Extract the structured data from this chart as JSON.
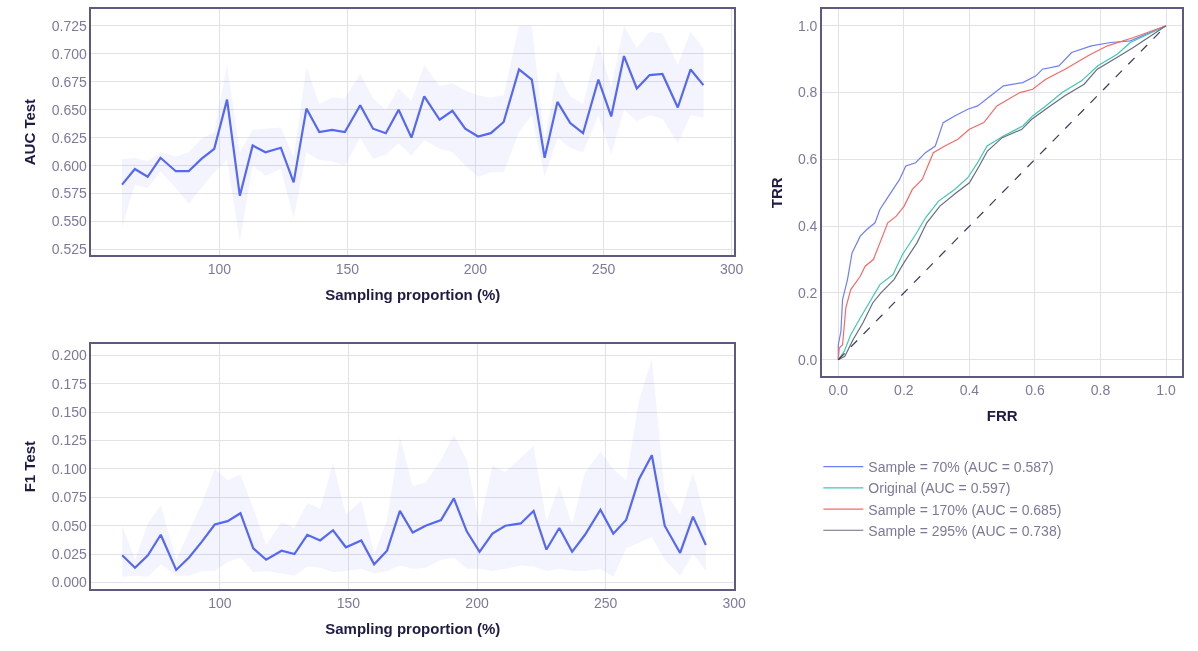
{
  "chart_data": [
    {
      "type": "line",
      "xlabel": "Sampling proportion (%)",
      "ylabel": "AUC Test",
      "grid": true,
      "legend": false,
      "x": [
        62,
        67,
        72,
        77,
        83,
        88,
        93,
        98,
        103,
        108,
        113,
        118,
        124,
        129,
        134,
        139,
        144,
        149,
        155,
        160,
        165,
        170,
        175,
        180,
        186,
        191,
        196,
        201,
        206,
        211,
        217,
        222,
        227,
        232,
        237,
        242,
        248,
        253,
        258,
        263,
        268,
        273,
        279,
        284,
        289
      ],
      "series": [
        {
          "color": "#5468f5",
          "values": [
            0.583,
            0.597,
            0.59,
            0.607,
            0.595,
            0.595,
            0.606,
            0.615,
            0.659,
            0.573,
            0.618,
            0.612,
            0.616,
            0.585,
            0.651,
            0.63,
            0.632,
            0.63,
            0.654,
            0.633,
            0.629,
            0.65,
            0.625,
            0.662,
            0.641,
            0.649,
            0.633,
            0.626,
            0.629,
            0.639,
            0.686,
            0.677,
            0.607,
            0.657,
            0.638,
            0.629,
            0.677,
            0.644,
            0.698,
            0.669,
            0.681,
            0.682,
            0.652,
            0.686,
            0.672
          ],
          "lower": [
            0.545,
            0.583,
            0.58,
            0.595,
            0.58,
            0.566,
            0.58,
            0.594,
            0.605,
            0.532,
            0.6,
            0.591,
            0.597,
            0.553,
            0.612,
            0.605,
            0.604,
            0.6,
            0.625,
            0.606,
            0.61,
            0.62,
            0.609,
            0.623,
            0.615,
            0.612,
            0.6,
            0.59,
            0.594,
            0.594,
            0.63,
            0.645,
            0.59,
            0.625,
            0.616,
            0.612,
            0.645,
            0.61,
            0.65,
            0.64,
            0.645,
            0.642,
            0.62,
            0.645,
            0.643
          ],
          "upper": [
            0.606,
            0.607,
            0.604,
            0.612,
            0.608,
            0.612,
            0.624,
            0.63,
            0.69,
            0.612,
            0.632,
            0.633,
            0.634,
            0.608,
            0.688,
            0.655,
            0.661,
            0.66,
            0.682,
            0.66,
            0.65,
            0.669,
            0.658,
            0.69,
            0.671,
            0.674,
            0.667,
            0.663,
            0.661,
            0.663,
            0.725,
            0.725,
            0.623,
            0.685,
            0.662,
            0.655,
            0.709,
            0.67,
            0.725,
            0.705,
            0.72,
            0.718,
            0.69,
            0.72,
            0.705
          ]
        }
      ],
      "xlim": [
        50,
        301
      ],
      "xticks": [
        100,
        150,
        200,
        250,
        300
      ],
      "ylim": [
        0.52,
        0.74
      ],
      "yticks": [
        {
          "value": 0.525,
          "label": "0.525"
        },
        {
          "value": 0.55,
          "label": "0.550"
        },
        {
          "value": 0.575,
          "label": "0.575"
        },
        {
          "value": 0.6,
          "label": "0.600"
        },
        {
          "value": 0.625,
          "label": "0.625"
        },
        {
          "value": 0.65,
          "label": "0.650"
        },
        {
          "value": 0.675,
          "label": "0.675"
        },
        {
          "value": 0.7,
          "label": "0.700"
        },
        {
          "value": 0.725,
          "label": "0.725"
        }
      ]
    },
    {
      "type": "line",
      "xlabel": "FRR",
      "ylabel": "TRR",
      "grid": true,
      "legend": "bottom",
      "series": [
        {
          "name": "Sample = 70% (AUC = 0.587)",
          "color": "#6f7ff5",
          "x": [
            0,
            0,
            0.008,
            0.013,
            0.028,
            0.042,
            0.067,
            0.087,
            0.112,
            0.127,
            0.147,
            0.167,
            0.187,
            0.206,
            0.236,
            0.266,
            0.296,
            0.32,
            0.355,
            0.395,
            0.425,
            0.464,
            0.504,
            0.563,
            0.603,
            0.623,
            0.673,
            0.712,
            0.772,
            0.831,
            0.891,
            1
          ],
          "values": [
            0,
            0.045,
            0.085,
            0.18,
            0.24,
            0.32,
            0.37,
            0.39,
            0.41,
            0.45,
            0.48,
            0.51,
            0.54,
            0.58,
            0.59,
            0.62,
            0.64,
            0.71,
            0.73,
            0.75,
            0.76,
            0.79,
            0.82,
            0.83,
            0.85,
            0.87,
            0.88,
            0.92,
            0.94,
            0.95,
            0.955,
            1
          ]
        },
        {
          "name": "Original (AUC = 0.597)",
          "color": "#3cc9b5",
          "x": [
            0,
            0.018,
            0.038,
            0.067,
            0.097,
            0.127,
            0.167,
            0.196,
            0.236,
            0.266,
            0.306,
            0.355,
            0.395,
            0.425,
            0.454,
            0.504,
            0.563,
            0.593,
            0.633,
            0.683,
            0.742,
            0.792,
            0.851,
            0.891,
            1
          ],
          "values": [
            0,
            0.025,
            0.075,
            0.125,
            0.175,
            0.225,
            0.255,
            0.315,
            0.375,
            0.425,
            0.475,
            0.51,
            0.545,
            0.59,
            0.64,
            0.67,
            0.7,
            0.73,
            0.76,
            0.8,
            0.835,
            0.88,
            0.915,
            0.95,
            1
          ]
        },
        {
          "name": "Sample = 170% (AUC = 0.685)",
          "color": "#f26b6b",
          "x": [
            0,
            0.003,
            0.013,
            0.023,
            0.038,
            0.067,
            0.082,
            0.107,
            0.127,
            0.151,
            0.177,
            0.201,
            0.226,
            0.256,
            0.29,
            0.325,
            0.365,
            0.4,
            0.444,
            0.484,
            0.554,
            0.593,
            0.633,
            0.692,
            0.762,
            0.821,
            0.901,
            1
          ],
          "values": [
            0,
            0.035,
            0.045,
            0.155,
            0.21,
            0.25,
            0.28,
            0.3,
            0.35,
            0.41,
            0.43,
            0.46,
            0.51,
            0.54,
            0.62,
            0.64,
            0.66,
            0.69,
            0.71,
            0.76,
            0.8,
            0.81,
            0.84,
            0.87,
            0.91,
            0.94,
            0.965,
            1
          ]
        },
        {
          "name": "Sample = 295% (AUC = 0.738)",
          "color": "#6b6b80",
          "x": [
            0,
            0.02,
            0.045,
            0.075,
            0.105,
            0.13,
            0.17,
            0.2,
            0.24,
            0.27,
            0.31,
            0.36,
            0.4,
            0.43,
            0.455,
            0.5,
            0.56,
            0.59,
            0.64,
            0.69,
            0.75,
            0.79,
            0.85,
            0.9,
            1
          ],
          "values": [
            0,
            0.01,
            0.06,
            0.11,
            0.17,
            0.2,
            0.24,
            0.29,
            0.35,
            0.41,
            0.46,
            0.5,
            0.53,
            0.58,
            0.625,
            0.665,
            0.69,
            0.72,
            0.755,
            0.79,
            0.825,
            0.87,
            0.905,
            0.935,
            1
          ]
        },
        {
          "color": "#3a3a5a",
          "line_style": "dashed",
          "x": [
            0,
            1
          ],
          "values": [
            0,
            1
          ]
        }
      ],
      "xlim": [
        -0.05,
        1.05
      ],
      "ylim": [
        -0.05,
        1.05
      ],
      "xticks": [
        {
          "value": 0,
          "label": "0.0"
        },
        {
          "value": 0.2,
          "label": "0.2"
        },
        {
          "value": 0.4,
          "label": "0.4"
        },
        {
          "value": 0.6,
          "label": "0.6"
        },
        {
          "value": 0.8,
          "label": "0.8"
        },
        {
          "value": 1,
          "label": "1.0"
        }
      ],
      "yticks": [
        {
          "value": 0,
          "label": "0.0"
        },
        {
          "value": 0.2,
          "label": "0.2"
        },
        {
          "value": 0.4,
          "label": "0.4"
        },
        {
          "value": 0.6,
          "label": "0.6"
        },
        {
          "value": 0.8,
          "label": "0.8"
        },
        {
          "value": 1,
          "label": "1.0"
        }
      ]
    },
    {
      "type": "line",
      "xlabel": "Sampling proportion (%)",
      "ylabel": "F1 Test",
      "grid": true,
      "legend": false,
      "x": [
        62,
        67,
        72,
        77,
        83,
        88,
        93,
        98,
        103,
        108,
        113,
        118,
        124,
        129,
        134,
        139,
        144,
        149,
        155,
        160,
        165,
        170,
        175,
        180,
        186,
        191,
        196,
        201,
        206,
        211,
        217,
        222,
        227,
        232,
        237,
        242,
        248,
        253,
        258,
        263,
        268,
        273,
        279,
        284,
        289
      ],
      "series": [
        {
          "color": "#5468f5",
          "values": [
            0.024,
            0.013,
            0.024,
            0.042,
            0.011,
            0.022,
            0.036,
            0.051,
            0.054,
            0.061,
            0.03,
            0.02,
            0.028,
            0.025,
            0.042,
            0.037,
            0.046,
            0.031,
            0.037,
            0.016,
            0.028,
            0.063,
            0.044,
            0.05,
            0.055,
            0.074,
            0.045,
            0.027,
            0.043,
            0.05,
            0.052,
            0.063,
            0.029,
            0.048,
            0.027,
            0.042,
            0.064,
            0.043,
            0.055,
            0.091,
            0.112,
            0.05,
            0.026,
            0.058,
            0.033
          ],
          "lower": [
            0.005,
            0.006,
            0.005,
            0.016,
            0.006,
            0.006,
            0.01,
            0.01,
            0.018,
            0.022,
            0.009,
            0.01,
            0.008,
            0.006,
            0.014,
            0.013,
            0.009,
            0.01,
            0.012,
            0.008,
            0.01,
            0.015,
            0.012,
            0.013,
            0.02,
            0.022,
            0.012,
            0.012,
            0.01,
            0.012,
            0.015,
            0.014,
            0.01,
            0.012,
            0.01,
            0.01,
            0.012,
            0.005,
            0.03,
            0.035,
            0.04,
            0.02,
            0.006,
            0.025,
            0.01
          ],
          "upper": [
            0.05,
            0.02,
            0.052,
            0.068,
            0.02,
            0.045,
            0.07,
            0.1,
            0.09,
            0.095,
            0.065,
            0.033,
            0.053,
            0.048,
            0.07,
            0.065,
            0.105,
            0.06,
            0.072,
            0.025,
            0.055,
            0.128,
            0.085,
            0.088,
            0.108,
            0.13,
            0.108,
            0.05,
            0.103,
            0.097,
            0.11,
            0.12,
            0.054,
            0.085,
            0.051,
            0.097,
            0.115,
            0.1,
            0.09,
            0.16,
            0.197,
            0.08,
            0.06,
            0.097,
            0.055
          ]
        }
      ],
      "xlim": [
        50,
        300
      ],
      "xticks": [
        100,
        150,
        200,
        250,
        300
      ],
      "ylim": [
        -0.006,
        0.21
      ],
      "yticks": [
        {
          "value": 0,
          "label": "0.000"
        },
        {
          "value": 0.025,
          "label": "0.025"
        },
        {
          "value": 0.05,
          "label": "0.050"
        },
        {
          "value": 0.075,
          "label": "0.075"
        },
        {
          "value": 0.1,
          "label": "0.100"
        },
        {
          "value": 0.125,
          "label": "0.125"
        },
        {
          "value": 0.15,
          "label": "0.150"
        },
        {
          "value": 0.175,
          "label": "0.175"
        },
        {
          "value": 0.2,
          "label": "0.200"
        }
      ]
    }
  ]
}
